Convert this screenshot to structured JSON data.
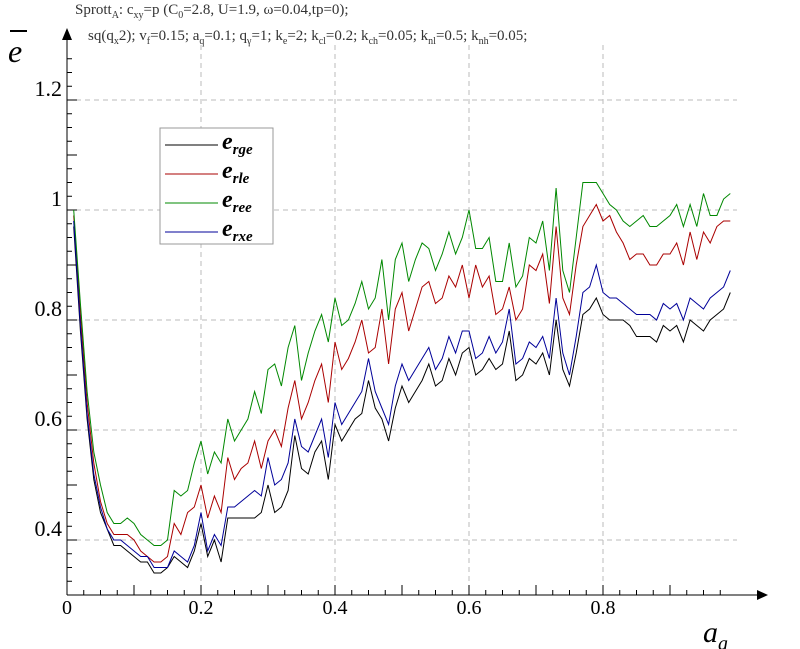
{
  "header": {
    "line1": [
      {
        "t": "Sprott"
      },
      {
        "t": "A",
        "sub": true
      },
      {
        "t": ": c"
      },
      {
        "t": "xy",
        "sub": true
      },
      {
        "t": "=p (C"
      },
      {
        "t": "0",
        "sub": true
      },
      {
        "t": "=2.8, U=1.9, ω=0.04,tp=0);"
      }
    ],
    "line2": [
      {
        "t": "sq(q"
      },
      {
        "t": "x",
        "sub": true
      },
      {
        "t": "2); v"
      },
      {
        "t": "f",
        "sub": true
      },
      {
        "t": "=0.15; a"
      },
      {
        "t": "q",
        "sub": true
      },
      {
        "t": "=0.1; q"
      },
      {
        "t": "γ",
        "sub": true
      },
      {
        "t": "=1; k"
      },
      {
        "t": "e",
        "sub": true
      },
      {
        "t": "=2; k"
      },
      {
        "t": "cl",
        "sub": true
      },
      {
        "t": "=0.2; k"
      },
      {
        "t": "ch",
        "sub": true
      },
      {
        "t": "=0.05; k"
      },
      {
        "t": "nl",
        "sub": true
      },
      {
        "t": "=0.5; k"
      },
      {
        "t": "nh",
        "sub": true
      },
      {
        "t": "=0.05;"
      }
    ]
  },
  "chart_data": {
    "type": "line",
    "ylabel": "e",
    "xlabel": "a",
    "xlabel_sub": "a",
    "xlim": [
      0,
      1.0
    ],
    "ylim": [
      0.3,
      1.3
    ],
    "x_ticks": [
      0,
      0.2,
      0.4,
      0.6,
      0.8
    ],
    "x_tick_labels": [
      "0",
      "0.2",
      "0.4",
      "0.6",
      "0.8"
    ],
    "y_ticks": [
      0.4,
      0.6,
      0.8,
      1,
      1.2
    ],
    "y_tick_labels": [
      "0.4",
      "0.6",
      "0.8",
      "1",
      "1.2"
    ],
    "grid": true,
    "legend_position": "upper-left",
    "x": [
      0.01,
      0.02,
      0.03,
      0.04,
      0.05,
      0.06,
      0.07,
      0.08,
      0.09,
      0.1,
      0.11,
      0.12,
      0.13,
      0.14,
      0.15,
      0.16,
      0.17,
      0.18,
      0.19,
      0.2,
      0.21,
      0.22,
      0.23,
      0.24,
      0.25,
      0.26,
      0.27,
      0.28,
      0.29,
      0.3,
      0.31,
      0.32,
      0.33,
      0.34,
      0.35,
      0.36,
      0.37,
      0.38,
      0.39,
      0.4,
      0.41,
      0.42,
      0.43,
      0.44,
      0.45,
      0.46,
      0.47,
      0.48,
      0.49,
      0.5,
      0.51,
      0.52,
      0.53,
      0.54,
      0.55,
      0.56,
      0.57,
      0.58,
      0.59,
      0.6,
      0.61,
      0.62,
      0.63,
      0.64,
      0.65,
      0.66,
      0.67,
      0.68,
      0.69,
      0.7,
      0.71,
      0.72,
      0.73,
      0.74,
      0.75,
      0.76,
      0.77,
      0.78,
      0.79,
      0.8,
      0.81,
      0.82,
      0.83,
      0.84,
      0.85,
      0.86,
      0.87,
      0.88,
      0.89,
      0.9,
      0.91,
      0.92,
      0.93,
      0.94,
      0.95,
      0.96,
      0.97,
      0.98,
      0.99
    ],
    "series": [
      {
        "name": "rge",
        "color": "#000000",
        "values": [
          0.97,
          0.78,
          0.62,
          0.51,
          0.45,
          0.42,
          0.39,
          0.39,
          0.38,
          0.37,
          0.36,
          0.36,
          0.34,
          0.34,
          0.35,
          0.37,
          0.36,
          0.35,
          0.38,
          0.43,
          0.37,
          0.4,
          0.36,
          0.44,
          0.44,
          0.44,
          0.44,
          0.44,
          0.45,
          0.5,
          0.45,
          0.46,
          0.49,
          0.59,
          0.53,
          0.52,
          0.56,
          0.58,
          0.51,
          0.61,
          0.58,
          0.6,
          0.62,
          0.63,
          0.69,
          0.64,
          0.62,
          0.58,
          0.64,
          0.68,
          0.65,
          0.67,
          0.69,
          0.72,
          0.68,
          0.69,
          0.73,
          0.7,
          0.74,
          0.75,
          0.7,
          0.71,
          0.73,
          0.71,
          0.72,
          0.78,
          0.69,
          0.7,
          0.73,
          0.72,
          0.74,
          0.7,
          0.8,
          0.71,
          0.68,
          0.74,
          0.81,
          0.82,
          0.84,
          0.81,
          0.8,
          0.8,
          0.8,
          0.79,
          0.77,
          0.77,
          0.77,
          0.76,
          0.79,
          0.78,
          0.79,
          0.76,
          0.8,
          0.79,
          0.78,
          0.8,
          0.81,
          0.82,
          0.85
        ]
      },
      {
        "name": "rle",
        "color": "#aa0000",
        "values": [
          0.99,
          0.81,
          0.65,
          0.54,
          0.47,
          0.43,
          0.41,
          0.41,
          0.41,
          0.4,
          0.38,
          0.37,
          0.36,
          0.36,
          0.37,
          0.43,
          0.41,
          0.45,
          0.46,
          0.5,
          0.44,
          0.48,
          0.45,
          0.55,
          0.51,
          0.53,
          0.54,
          0.58,
          0.53,
          0.58,
          0.6,
          0.57,
          0.64,
          0.69,
          0.62,
          0.65,
          0.69,
          0.72,
          0.65,
          0.76,
          0.71,
          0.73,
          0.76,
          0.8,
          0.74,
          0.75,
          0.82,
          0.72,
          0.82,
          0.85,
          0.78,
          0.82,
          0.86,
          0.87,
          0.83,
          0.84,
          0.88,
          0.86,
          0.9,
          0.84,
          0.9,
          0.86,
          0.88,
          0.81,
          0.82,
          0.86,
          0.8,
          0.82,
          0.9,
          0.89,
          0.92,
          0.83,
          0.97,
          0.84,
          0.81,
          0.9,
          0.97,
          0.99,
          1.01,
          0.98,
          0.99,
          0.96,
          0.94,
          0.91,
          0.92,
          0.92,
          0.9,
          0.9,
          0.92,
          0.92,
          0.94,
          0.9,
          0.96,
          0.91,
          0.96,
          0.94,
          0.97,
          0.98,
          0.98
        ]
      },
      {
        "name": "ree",
        "color": "#008800",
        "values": [
          1.0,
          0.83,
          0.67,
          0.56,
          0.5,
          0.45,
          0.43,
          0.43,
          0.44,
          0.43,
          0.41,
          0.4,
          0.39,
          0.39,
          0.4,
          0.49,
          0.48,
          0.49,
          0.54,
          0.58,
          0.52,
          0.56,
          0.54,
          0.62,
          0.58,
          0.6,
          0.62,
          0.67,
          0.63,
          0.71,
          0.72,
          0.68,
          0.75,
          0.79,
          0.69,
          0.74,
          0.78,
          0.81,
          0.76,
          0.84,
          0.79,
          0.8,
          0.83,
          0.87,
          0.82,
          0.84,
          0.91,
          0.8,
          0.91,
          0.94,
          0.87,
          0.91,
          0.94,
          0.93,
          0.89,
          0.92,
          0.96,
          0.92,
          0.95,
          1.0,
          0.93,
          0.93,
          0.95,
          0.87,
          0.87,
          0.94,
          0.86,
          0.88,
          0.95,
          0.94,
          0.98,
          0.89,
          1.04,
          0.89,
          0.85,
          0.95,
          1.05,
          1.05,
          1.05,
          1.03,
          1.01,
          1.0,
          0.98,
          0.97,
          0.98,
          0.99,
          0.97,
          0.97,
          0.98,
          0.99,
          1.01,
          0.97,
          1.01,
          0.97,
          1.03,
          0.99,
          0.99,
          1.02,
          1.03
        ]
      },
      {
        "name": "rxe",
        "color": "#000099",
        "values": [
          0.98,
          0.79,
          0.63,
          0.52,
          0.46,
          0.42,
          0.4,
          0.4,
          0.39,
          0.38,
          0.37,
          0.37,
          0.35,
          0.35,
          0.35,
          0.38,
          0.37,
          0.36,
          0.39,
          0.45,
          0.38,
          0.41,
          0.39,
          0.46,
          0.46,
          0.47,
          0.48,
          0.49,
          0.48,
          0.55,
          0.5,
          0.51,
          0.54,
          0.62,
          0.57,
          0.56,
          0.59,
          0.62,
          0.55,
          0.65,
          0.61,
          0.63,
          0.65,
          0.67,
          0.73,
          0.67,
          0.64,
          0.61,
          0.68,
          0.72,
          0.69,
          0.71,
          0.73,
          0.75,
          0.71,
          0.73,
          0.77,
          0.74,
          0.78,
          0.78,
          0.73,
          0.74,
          0.77,
          0.74,
          0.76,
          0.82,
          0.72,
          0.73,
          0.76,
          0.75,
          0.77,
          0.73,
          0.84,
          0.74,
          0.7,
          0.77,
          0.85,
          0.86,
          0.9,
          0.85,
          0.84,
          0.84,
          0.83,
          0.82,
          0.81,
          0.81,
          0.81,
          0.8,
          0.83,
          0.82,
          0.83,
          0.8,
          0.84,
          0.83,
          0.82,
          0.84,
          0.85,
          0.86,
          0.89
        ]
      }
    ]
  }
}
